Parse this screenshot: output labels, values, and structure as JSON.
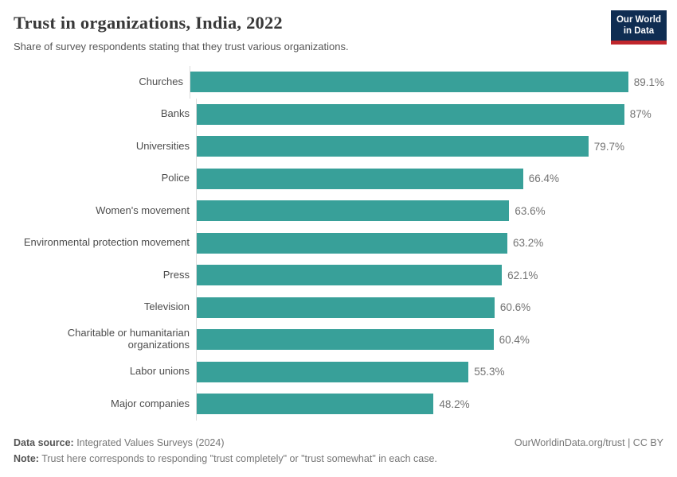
{
  "header": {
    "title": "Trust in organizations, India, 2022",
    "subtitle": "Share of survey respondents stating that they trust various organizations.",
    "logo": {
      "line1": "Our World",
      "line2": "in Data"
    }
  },
  "chart_data": {
    "type": "bar",
    "orientation": "horizontal",
    "title": "Trust in organizations, India, 2022",
    "categories": [
      "Churches",
      "Banks",
      "Universities",
      "Police",
      "Women's movement",
      "Environmental protection movement",
      "Press",
      "Television",
      "Charitable or humanitarian organizations",
      "Labor unions",
      "Major companies"
    ],
    "values": [
      89.1,
      87,
      79.7,
      66.4,
      63.6,
      63.2,
      62.1,
      60.6,
      60.4,
      55.3,
      48.2
    ],
    "value_labels": [
      "89.1%",
      "87%",
      "79.7%",
      "66.4%",
      "63.6%",
      "63.2%",
      "62.1%",
      "60.6%",
      "60.4%",
      "55.3%",
      "48.2%"
    ],
    "xlabel": "",
    "ylabel": "",
    "xlim": [
      0,
      100
    ],
    "grid": false,
    "legend": false,
    "unit": "%"
  },
  "colors": {
    "bar": "#38A099",
    "logo_navy": "#0F2D52",
    "logo_red": "#C0262C",
    "axis_line": "#DCDCDC"
  },
  "footer": {
    "source_label": "Data source:",
    "source_text": " Integrated Values Surveys (2024)",
    "note_label": "Note:",
    "note_text": " Trust here corresponds to responding \"trust completely\" or \"trust somewhat\" in each case.",
    "credit": "OurWorldinData.org/trust | CC BY"
  }
}
